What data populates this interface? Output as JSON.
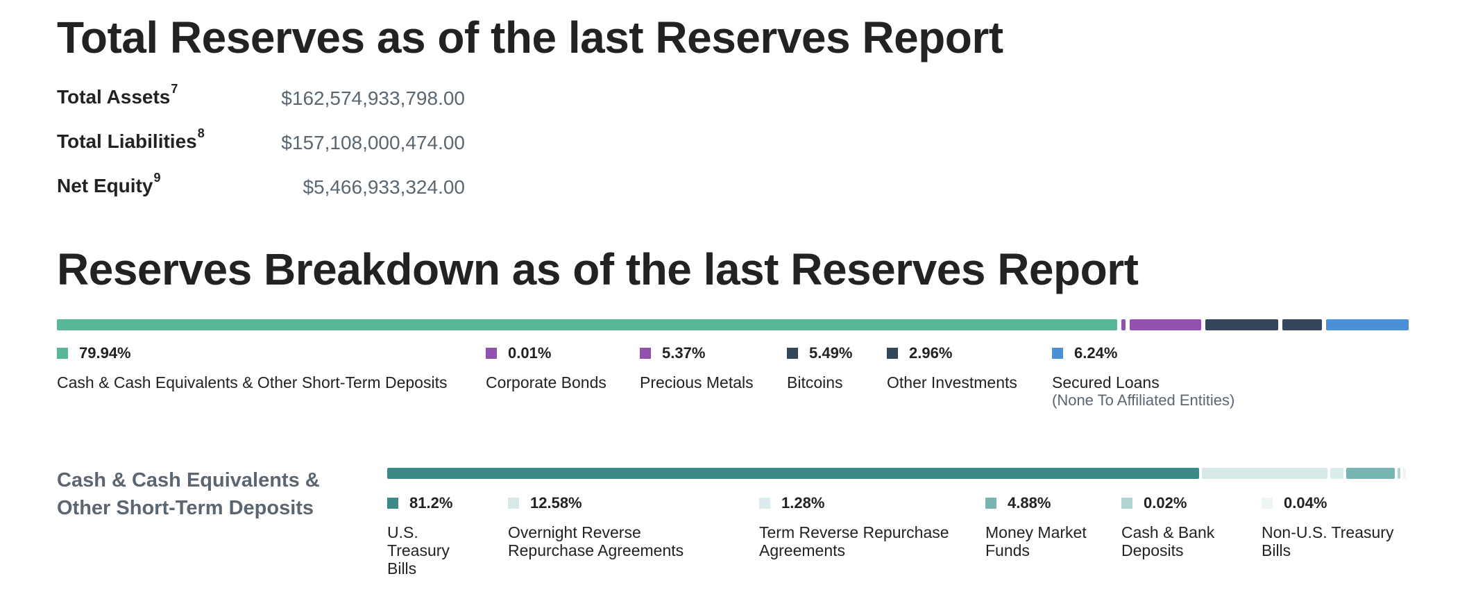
{
  "totals": {
    "title": "Total Reserves as of the last Reserves Report",
    "assets": {
      "label": "Total Assets",
      "sup": "7",
      "value": "$162,574,933,798.00"
    },
    "liabilities": {
      "label": "Total Liabilities",
      "sup": "8",
      "value": "$157,108,000,474.00"
    },
    "equity": {
      "label": "Net Equity",
      "sup": "9",
      "value": "$5,466,933,324.00"
    }
  },
  "breakdown": {
    "title": "Reserves Breakdown as of the last Reserves Report",
    "items": [
      {
        "pct": "79.94%",
        "label": "Cash & Cash Equivalents & Other Short-Term Deposits",
        "color": "#57b796",
        "share": 79.94
      },
      {
        "pct": "0.01%",
        "label": "Corporate Bonds",
        "color": "#9251ac",
        "share": 0.01
      },
      {
        "pct": "5.37%",
        "label": "Precious Metals",
        "color": "#9251ac",
        "share": 5.37
      },
      {
        "pct": "5.49%",
        "label": "Bitcoins",
        "color": "#34465c",
        "share": 5.49
      },
      {
        "pct": "2.96%",
        "label": "Other Investments",
        "color": "#34465c",
        "share": 2.96
      },
      {
        "pct": "6.24%",
        "label": "Secured Loans",
        "sublabel": "(None To Affiliated Entities)",
        "color": "#4a90d9",
        "share": 6.24
      }
    ]
  },
  "cash": {
    "title": "Cash & Cash Equivalents & Other Short-Term Deposits",
    "items": [
      {
        "pct": "81.2%",
        "label": "U.S. Treasury Bills",
        "color": "#3b8a88",
        "share": 81.2
      },
      {
        "pct": "12.58%",
        "label": "Overnight Reverse Repurchase Agreements",
        "color": "#d6e8e8",
        "share": 12.58
      },
      {
        "pct": "1.28%",
        "label": "Term Reverse Repurchase Agreements",
        "color": "#dcecec",
        "share": 1.28
      },
      {
        "pct": "4.88%",
        "label": "Money Market Funds",
        "color": "#76b5b2",
        "share": 4.88
      },
      {
        "pct": "0.02%",
        "label": "Cash & Bank Deposits",
        "color": "#b1d5d3",
        "share": 0.02
      },
      {
        "pct": "0.04%",
        "label": "Non-U.S. Treasury Bills",
        "color": "#eef5f5",
        "share": 0.04
      }
    ]
  }
}
